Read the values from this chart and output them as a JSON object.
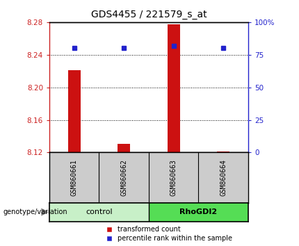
{
  "title": "GDS4455 / 221579_s_at",
  "samples": [
    "GSM860661",
    "GSM860662",
    "GSM860663",
    "GSM860664"
  ],
  "red_values": [
    8.221,
    8.131,
    8.277,
    8.121
  ],
  "blue_values": [
    80,
    80,
    82,
    80
  ],
  "ylim_left": [
    8.12,
    8.28
  ],
  "ylim_right": [
    0,
    100
  ],
  "yticks_left": [
    8.12,
    8.16,
    8.2,
    8.24,
    8.28
  ],
  "yticks_right": [
    0,
    25,
    50,
    75,
    100
  ],
  "ytick_labels_right": [
    "0",
    "25",
    "50",
    "75",
    "100%"
  ],
  "baseline": 8.12,
  "groups": [
    {
      "label": "control",
      "color": "#c8f0c8"
    },
    {
      "label": "RhoGDI2",
      "color": "#55dd55"
    }
  ],
  "bar_color": "#cc1111",
  "dot_color": "#2222cc",
  "grid_color": "#000000",
  "sample_bg_color": "#cccccc",
  "genotype_label": "genotype/variation",
  "legend_red": "transformed count",
  "legend_blue": "percentile rank within the sample",
  "left_axis_color": "#cc2222",
  "right_axis_color": "#2222cc"
}
